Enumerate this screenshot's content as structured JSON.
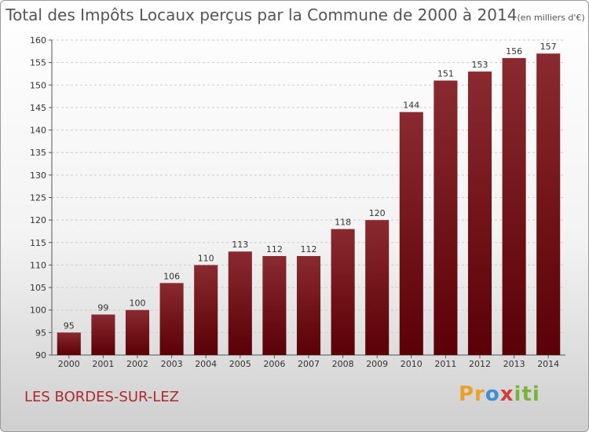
{
  "title": "Total des Impôts Locaux perçus par la Commune de 2000 à 2014",
  "unit_note": "(en milliers d'€)",
  "commune": "LES BORDES-SUR-LEZ",
  "logo": {
    "text": "Proxiti",
    "colors": [
      "#e8a22c",
      "#3b8fd6",
      "#d63b3b",
      "#79b33b"
    ]
  },
  "chart_data": {
    "type": "bar",
    "title": "Total des Impôts Locaux perçus par la Commune de 2000 à 2014",
    "xlabel": "",
    "ylabel": "",
    "categories": [
      "2000",
      "2001",
      "2002",
      "2003",
      "2004",
      "2005",
      "2006",
      "2007",
      "2008",
      "2009",
      "2010",
      "2011",
      "2012",
      "2013",
      "2014"
    ],
    "values": [
      95,
      99,
      100,
      106,
      110,
      113,
      112,
      112,
      118,
      120,
      144,
      151,
      153,
      156,
      157
    ],
    "ylim": [
      90,
      160
    ],
    "yticks": [
      90,
      95,
      100,
      105,
      110,
      115,
      120,
      125,
      130,
      135,
      140,
      145,
      150,
      155,
      160
    ],
    "grid": "horizontal-dashed",
    "bar_color_top": "#8a2a30",
    "bar_color_bottom": "#5a0006"
  }
}
